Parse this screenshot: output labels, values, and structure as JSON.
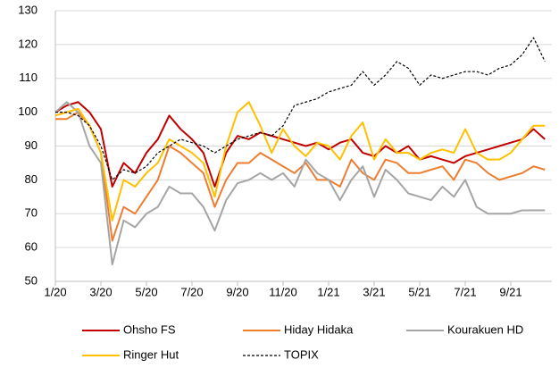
{
  "chart_data": {
    "type": "line",
    "categories": [
      "1/20",
      null,
      null,
      null,
      "3/20",
      null,
      null,
      null,
      "5/20",
      null,
      null,
      null,
      "7/20",
      null,
      null,
      null,
      "9/20",
      null,
      null,
      null,
      "11/20",
      null,
      null,
      null,
      "1/21",
      null,
      null,
      null,
      "3/21",
      null,
      null,
      null,
      "5/21",
      null,
      null,
      null,
      "7/21",
      null,
      null,
      null,
      "9/21",
      null,
      null,
      null
    ],
    "ylim": [
      50,
      130
    ],
    "yticks": [
      50,
      60,
      70,
      80,
      90,
      100,
      110,
      120,
      130
    ],
    "grid": true,
    "series": [
      {
        "name": "Ohsho FS",
        "color": "#c00000",
        "dashed": false,
        "values": [
          100,
          102,
          103,
          100,
          95,
          78,
          85,
          82,
          88,
          92,
          99,
          95,
          92,
          88,
          78,
          88,
          93,
          92,
          94,
          93,
          92,
          91,
          90,
          91,
          89,
          91,
          92,
          88,
          87,
          90,
          88,
          90,
          86,
          87,
          86,
          85,
          87,
          88,
          89,
          90,
          91,
          92,
          95,
          92
        ]
      },
      {
        "name": "Hiday Hidaka",
        "color": "#ed7d31",
        "dashed": false,
        "values": [
          98,
          98,
          100,
          96,
          88,
          62,
          72,
          70,
          75,
          80,
          90,
          88,
          85,
          82,
          72,
          80,
          85,
          85,
          88,
          86,
          84,
          82,
          85,
          80,
          80,
          78,
          86,
          82,
          80,
          86,
          85,
          82,
          82,
          83,
          84,
          80,
          86,
          85,
          82,
          80,
          81,
          82,
          84,
          83
        ]
      },
      {
        "name": "Kourakuen HD",
        "color": "#a5a5a5",
        "dashed": false,
        "values": [
          100,
          103,
          100,
          90,
          85,
          55,
          68,
          66,
          70,
          72,
          78,
          76,
          76,
          72,
          65,
          74,
          79,
          80,
          82,
          80,
          82,
          78,
          86,
          82,
          80,
          74,
          80,
          84,
          75,
          83,
          80,
          76,
          75,
          74,
          78,
          75,
          80,
          72,
          70,
          70,
          70,
          71,
          71,
          71
        ]
      },
      {
        "name": "Ringer Hut",
        "color": "#ffc000",
        "dashed": false,
        "values": [
          99,
          100,
          101,
          96,
          88,
          68,
          80,
          78,
          82,
          85,
          92,
          90,
          88,
          85,
          75,
          90,
          100,
          103,
          96,
          88,
          95,
          90,
          87,
          91,
          90,
          86,
          93,
          97,
          86,
          92,
          88,
          88,
          86,
          88,
          89,
          88,
          95,
          88,
          86,
          86,
          88,
          92,
          96,
          96
        ]
      },
      {
        "name": "TOPIX",
        "color": "#000000",
        "dashed": true,
        "values": [
          100,
          100,
          99,
          96,
          90,
          80,
          83,
          82,
          84,
          88,
          90,
          92,
          91,
          90,
          88,
          90,
          92,
          93,
          94,
          93,
          96,
          102,
          103,
          104,
          106,
          107,
          108,
          112,
          108,
          111,
          115,
          113,
          108,
          111,
          110,
          111,
          112,
          112,
          111,
          113,
          114,
          117,
          122,
          115
        ]
      }
    ]
  }
}
